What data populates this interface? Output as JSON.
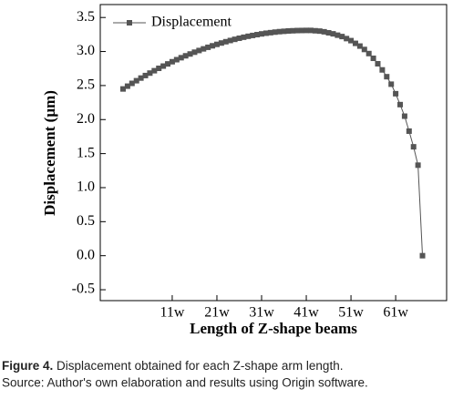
{
  "chart_data": {
    "type": "line",
    "x_label": "Length of Z-shape beams",
    "y_label": "Displacement (µm)",
    "caption_label": "Figure 4.",
    "caption_text": "Displacement obtained for each Z-shape arm length.",
    "source": "Source: Author's own elaboration and results using Origin software.",
    "x": [
      0,
      1,
      2,
      3,
      4,
      5,
      6,
      7,
      8,
      9,
      10,
      11,
      12,
      13,
      14,
      15,
      16,
      17,
      18,
      19,
      20,
      21,
      22,
      23,
      24,
      25,
      26,
      27,
      28,
      29,
      30,
      31,
      32,
      33,
      34,
      35,
      36,
      37,
      38,
      39,
      40,
      41,
      42,
      43,
      44,
      45,
      46,
      47,
      48,
      49,
      50,
      51,
      52,
      53,
      54,
      55,
      56,
      57,
      58,
      59,
      60,
      61,
      62,
      63,
      64,
      65,
      66,
      67
    ],
    "series": [
      {
        "name": "Displacement",
        "color": "#555555",
        "values": [
          2.45,
          2.491,
          2.532,
          2.571,
          2.61,
          2.647,
          2.683,
          2.718,
          2.753,
          2.786,
          2.818,
          2.85,
          2.88,
          2.909,
          2.937,
          2.964,
          2.99,
          3.015,
          3.039,
          3.062,
          3.084,
          3.105,
          3.125,
          3.144,
          3.162,
          3.179,
          3.195,
          3.21,
          3.224,
          3.236,
          3.248,
          3.259,
          3.269,
          3.277,
          3.285,
          3.292,
          3.297,
          3.302,
          3.305,
          3.308,
          3.309,
          3.31,
          3.31,
          3.305,
          3.3,
          3.29,
          3.275,
          3.26,
          3.24,
          3.22,
          3.19,
          3.16,
          3.12,
          3.08,
          3.03,
          2.97,
          2.9,
          2.82,
          2.73,
          2.63,
          2.52,
          2.38,
          2.22,
          2.05,
          1.83,
          1.6,
          1.33,
          0
        ]
      }
    ],
    "xlim": [
      -5.1,
      72.4
    ],
    "xticks": [
      {
        "value": 11,
        "label": "11w"
      },
      {
        "value": 21,
        "label": "21w"
      },
      {
        "value": 31,
        "label": "31w"
      },
      {
        "value": 41,
        "label": "41w"
      },
      {
        "value": 51,
        "label": "51w"
      },
      {
        "value": 61,
        "label": "61w"
      }
    ],
    "ylim": [
      -0.66,
      3.69
    ],
    "yticks": [
      {
        "value": -0.5,
        "label": "-0.5"
      },
      {
        "value": 0,
        "label": "0.0"
      },
      {
        "value": 0.5,
        "label": "0.5"
      },
      {
        "value": 1,
        "label": "1.0"
      },
      {
        "value": 1.5,
        "label": "1.5"
      },
      {
        "value": 2,
        "label": "2.0"
      },
      {
        "value": 2.5,
        "label": "2.5"
      },
      {
        "value": 3,
        "label": "3.0"
      },
      {
        "value": 3.5,
        "label": "3.5"
      }
    ],
    "legend": "upper left"
  }
}
